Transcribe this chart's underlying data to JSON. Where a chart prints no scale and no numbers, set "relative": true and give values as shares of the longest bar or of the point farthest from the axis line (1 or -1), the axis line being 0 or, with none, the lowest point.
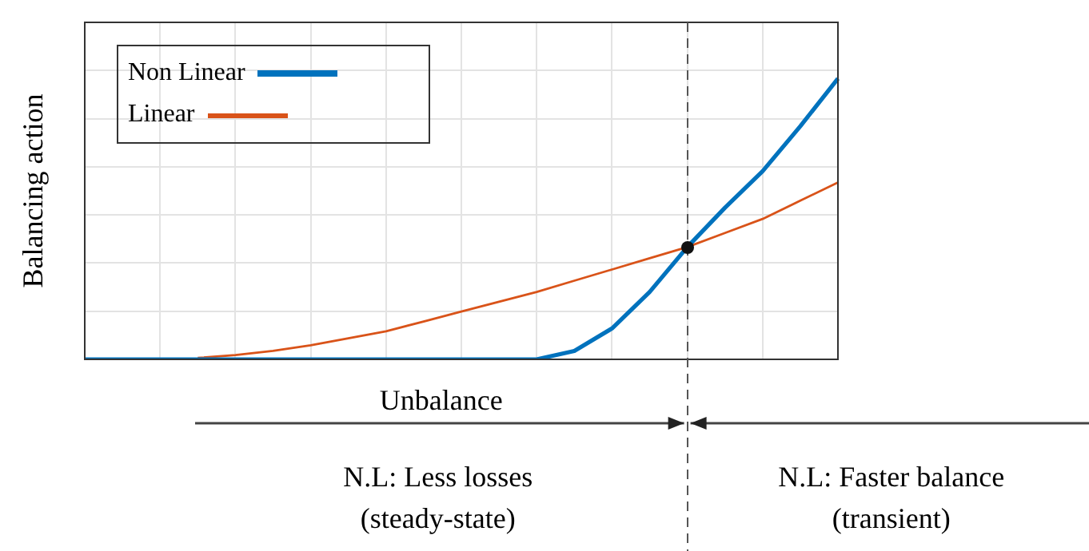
{
  "chart_data": {
    "type": "line",
    "relative": true,
    "ylabel": "Balancing action",
    "legend": "top left",
    "grid": true,
    "categories": [
      null,
      null,
      null,
      null,
      null,
      null,
      null,
      null,
      null,
      null,
      null,
      null,
      null,
      null,
      null,
      null,
      null,
      null,
      null,
      null,
      null
    ],
    "series": [
      {
        "name": "Non Linear",
        "color": "#0072bd",
        "values": [
          0,
          0,
          0,
          0,
          0,
          0,
          0,
          0,
          0,
          0,
          0,
          0,
          0,
          0.03,
          0.11,
          0.24,
          0.4,
          0.54,
          0.67,
          0.83,
          1
        ]
      },
      {
        "name": "Linear",
        "color": "#d95319",
        "values": [
          null,
          null,
          null,
          0.005,
          0.015,
          0.03,
          0.05,
          0.075,
          0.1,
          0.135,
          0.17,
          0.205,
          0.24,
          0.28,
          0.32,
          0.36,
          0.4,
          0.45,
          0.5,
          0.565,
          0.63
        ]
      }
    ],
    "annotations": [
      "Unbalance",
      "N.L: Less losses\n(steady-state)",
      "N.L: Faster balance\n(transient)"
    ]
  }
}
